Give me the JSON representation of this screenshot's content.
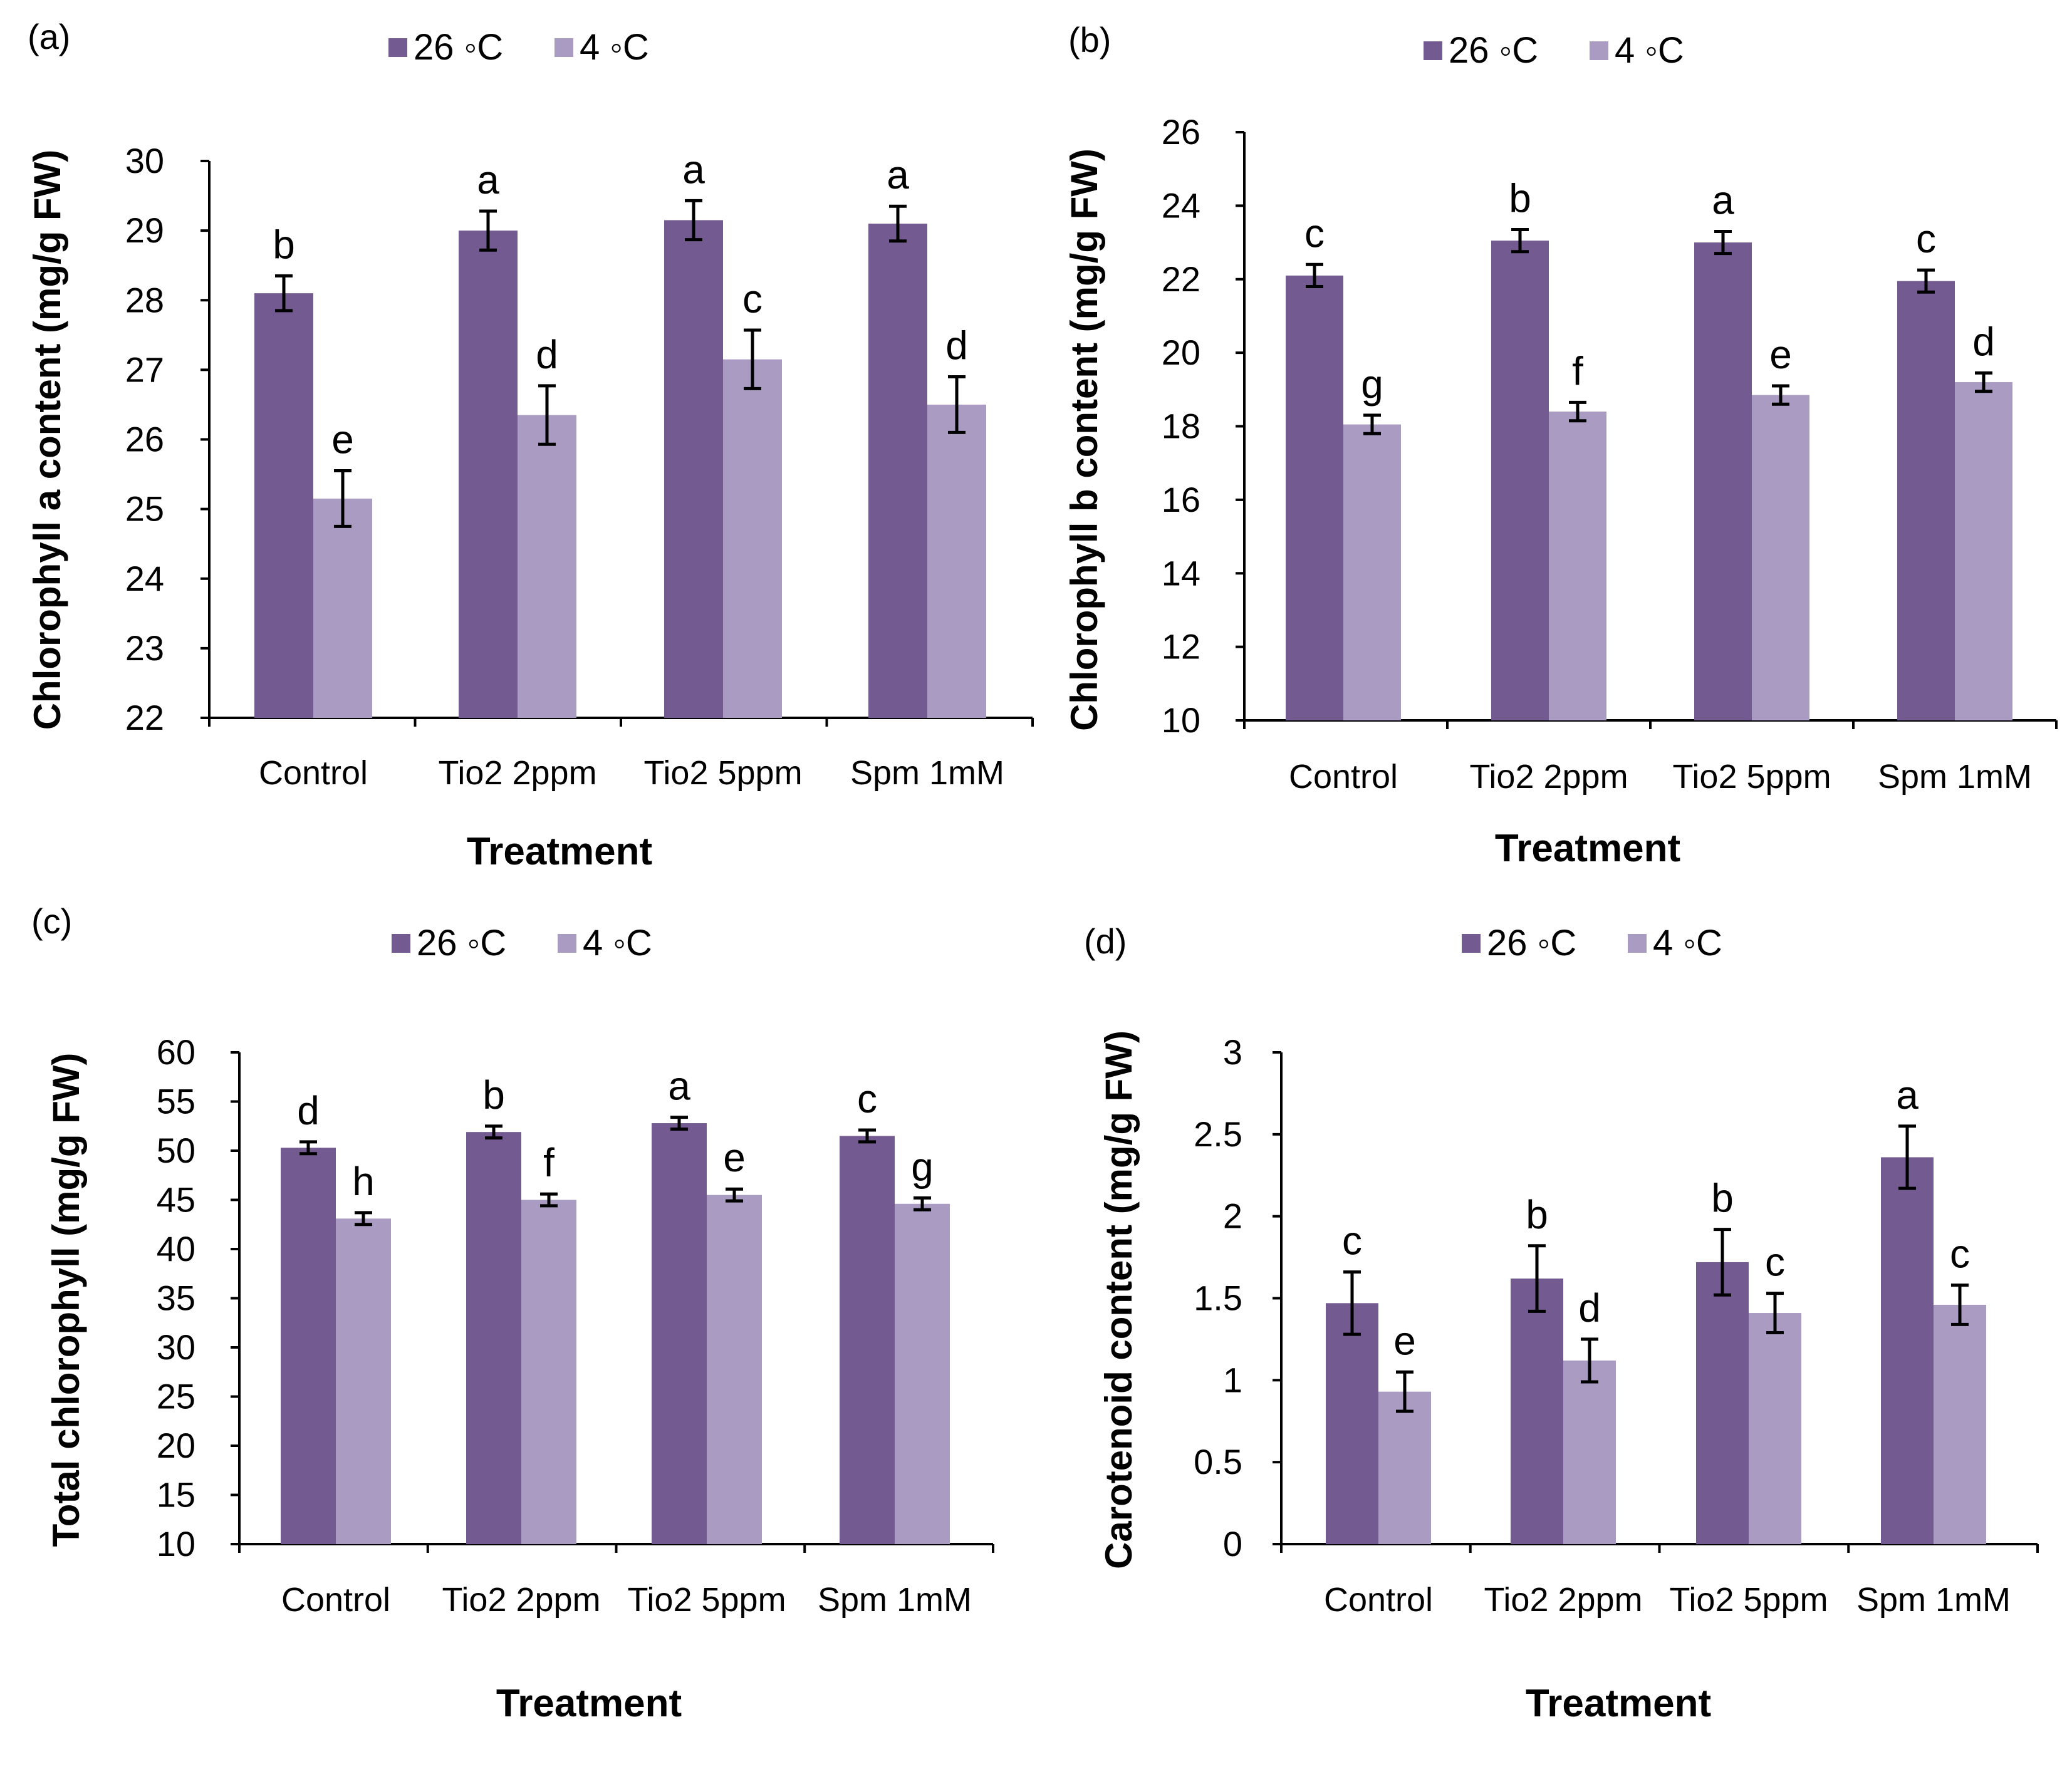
{
  "chart_data": [
    {
      "panel_label": "(a)",
      "type": "bar",
      "categories": [
        "Control",
        "Tio2 2ppm",
        "Tio2 5ppm",
        "Spm 1mM"
      ],
      "series": [
        {
          "name": "26 ◦C",
          "values": [
            28.1,
            29.0,
            29.15,
            29.1
          ],
          "errors": [
            0.25,
            0.28,
            0.28,
            0.25
          ],
          "letters": [
            "b",
            "a",
            "a",
            "a"
          ]
        },
        {
          "name": "4 ◦C",
          "values": [
            25.15,
            26.35,
            27.15,
            26.5
          ],
          "errors": [
            0.4,
            0.42,
            0.42,
            0.4
          ],
          "letters": [
            "e",
            "d",
            "c",
            "d"
          ]
        }
      ],
      "xlabel": "Treatment",
      "ylabel": "Chlorophyll a content (mg/g FW)",
      "ylim": [
        22,
        30
      ],
      "yticks": [
        "22",
        "23",
        "24",
        "25",
        "26",
        "27",
        "28",
        "29",
        "30"
      ],
      "legend": "top"
    },
    {
      "panel_label": "(b)",
      "type": "bar",
      "categories": [
        "Control",
        "Tio2 2ppm",
        "Tio2 5ppm",
        "Spm 1mM"
      ],
      "series": [
        {
          "name": "26 ◦C",
          "values": [
            22.1,
            23.05,
            23.0,
            21.95
          ],
          "errors": [
            0.3,
            0.3,
            0.3,
            0.3
          ],
          "letters": [
            "c",
            "b",
            "a",
            "c"
          ]
        },
        {
          "name": "4 ◦C",
          "values": [
            18.05,
            18.4,
            18.85,
            19.2
          ],
          "errors": [
            0.25,
            0.25,
            0.25,
            0.25
          ],
          "letters": [
            "g",
            "f",
            "e",
            "d"
          ]
        }
      ],
      "xlabel": "Treatment",
      "ylabel": "Chlorophyll b content (mg/g FW)",
      "ylim": [
        10,
        26
      ],
      "yticks": [
        "10",
        "12",
        "14",
        "16",
        "18",
        "20",
        "22",
        "24",
        "26"
      ],
      "legend": "top"
    },
    {
      "panel_label": "(c)",
      "type": "bar",
      "categories": [
        "Control",
        "Tio2 2ppm",
        "Tio2 5ppm",
        "Spm 1mM"
      ],
      "series": [
        {
          "name": "26 ◦C",
          "values": [
            50.3,
            51.9,
            52.8,
            51.5
          ],
          "errors": [
            0.6,
            0.6,
            0.6,
            0.6
          ],
          "letters": [
            "d",
            "b",
            "a",
            "c"
          ]
        },
        {
          "name": "4 ◦C",
          "values": [
            43.1,
            45.0,
            45.5,
            44.6
          ],
          "errors": [
            0.6,
            0.6,
            0.6,
            0.6
          ],
          "letters": [
            "h",
            "f",
            "e",
            "g"
          ]
        }
      ],
      "xlabel": "Treatment",
      "ylabel": "Total chlorophyll (mg/g FW)",
      "ylim": [
        10,
        60
      ],
      "yticks": [
        "10",
        "15",
        "20",
        "25",
        "30",
        "35",
        "40",
        "45",
        "50",
        "55",
        "60"
      ],
      "legend": "top"
    },
    {
      "panel_label": "(d)",
      "type": "bar",
      "categories": [
        "Control",
        "Tio2 2ppm",
        "Tio2 5ppm",
        "Spm 1mM"
      ],
      "series": [
        {
          "name": "26 ◦C",
          "values": [
            1.47,
            1.62,
            1.72,
            2.36
          ],
          "errors": [
            0.19,
            0.2,
            0.2,
            0.19
          ],
          "letters": [
            "c",
            "b",
            "b",
            "a"
          ]
        },
        {
          "name": "4 ◦C",
          "values": [
            0.93,
            1.12,
            1.41,
            1.46
          ],
          "errors": [
            0.12,
            0.13,
            0.12,
            0.12
          ],
          "letters": [
            "e",
            "d",
            "c",
            "c"
          ]
        }
      ],
      "xlabel": "Treatment",
      "ylabel": "Carotenoid content (mg/g FW)",
      "ylim": [
        0,
        3
      ],
      "yticks": [
        "0",
        "0.5",
        "1",
        "1.5",
        "2",
        "2.5",
        "3"
      ],
      "legend": "top"
    }
  ],
  "colors": {
    "series_26": "#735a90",
    "series_4": "#a99bc2",
    "axis": "#000000"
  }
}
